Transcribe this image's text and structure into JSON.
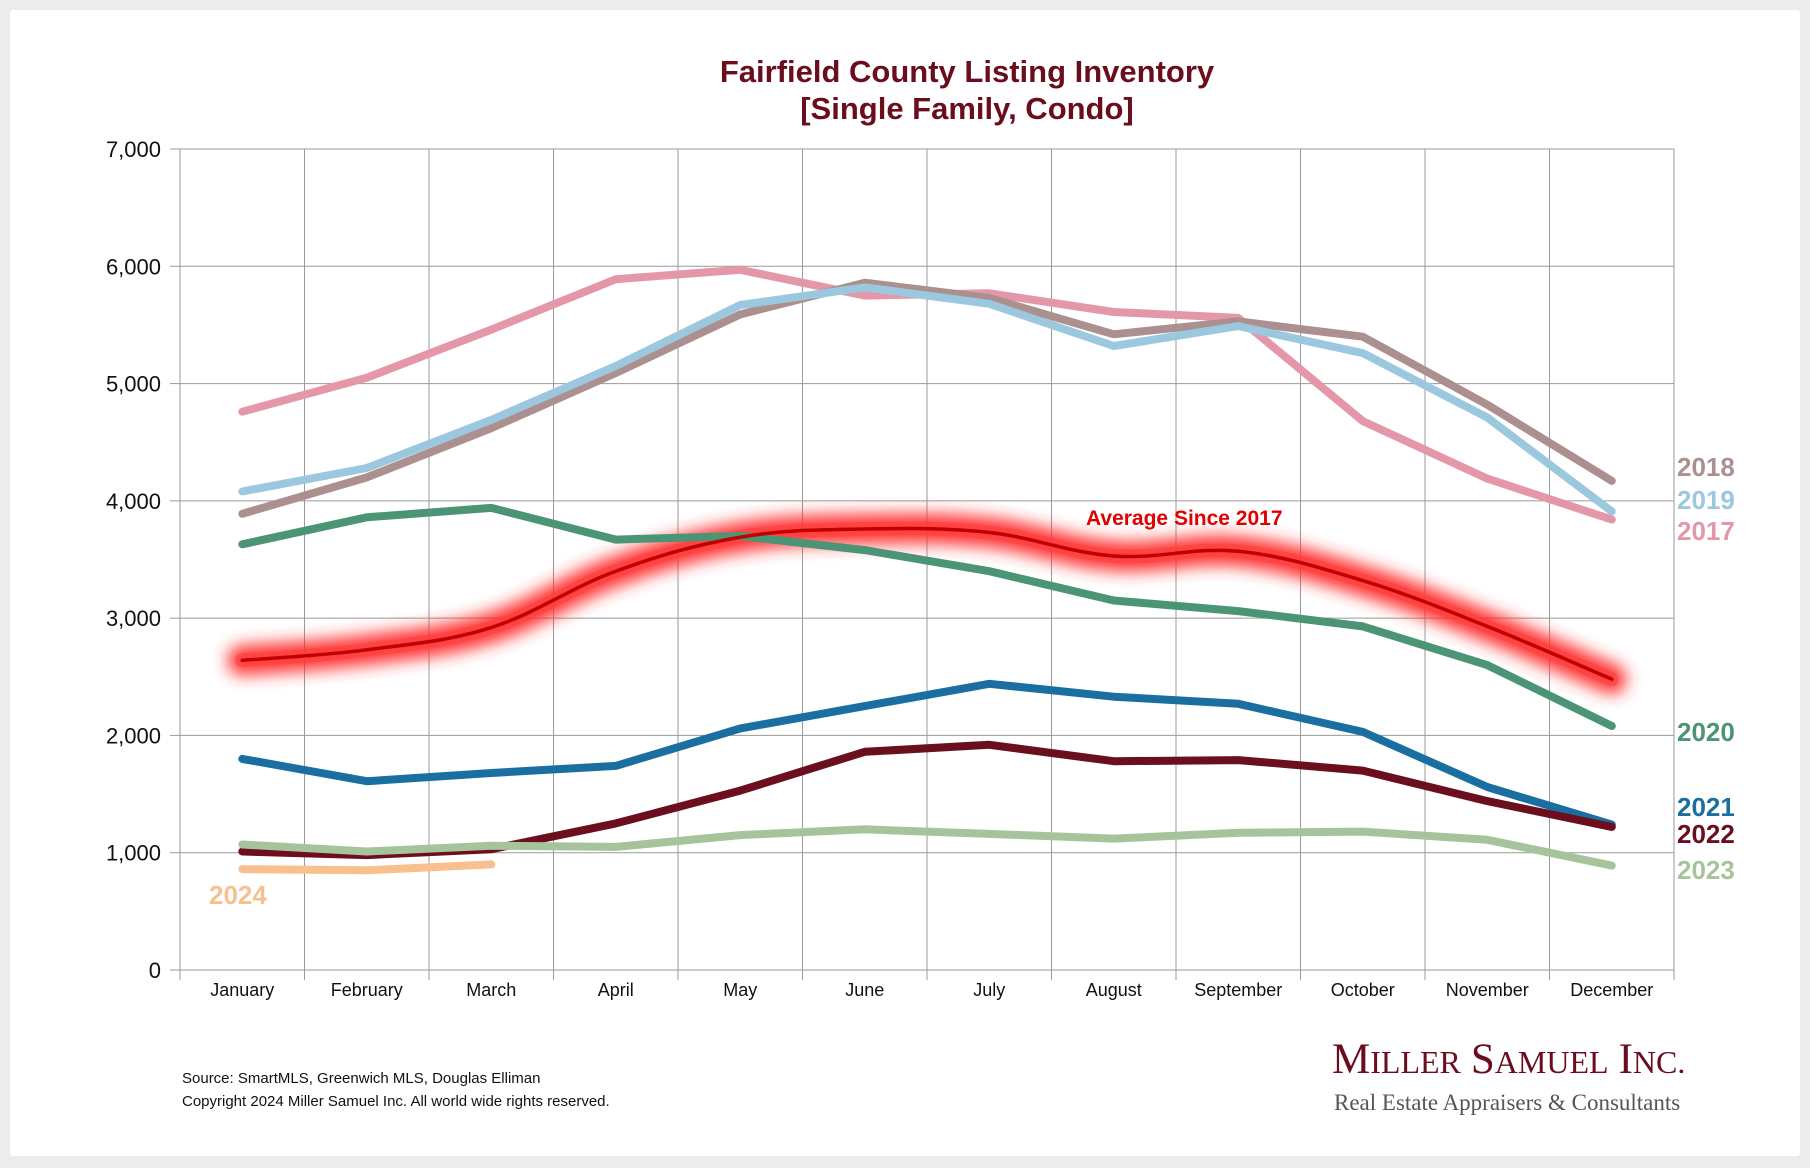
{
  "chart_data": {
    "type": "line",
    "title": "Fairfield County Listing Inventory",
    "subtitle": "[Single Family, Condo]",
    "xlabel": "",
    "ylabel": "",
    "categories": [
      "January",
      "February",
      "March",
      "April",
      "May",
      "June",
      "July",
      "August",
      "September",
      "October",
      "November",
      "December"
    ],
    "ylim": [
      0,
      7000
    ],
    "yticks": [
      0,
      1000,
      2000,
      3000,
      4000,
      5000,
      6000,
      7000
    ],
    "ytick_labels": [
      "0",
      "1,000",
      "2,000",
      "3,000",
      "4,000",
      "5,000",
      "6,000",
      "7,000"
    ],
    "grid": true,
    "series": [
      {
        "name": "2017",
        "color": "#e597aa",
        "values": [
          4760,
          5050,
          5460,
          5890,
          5970,
          5750,
          5770,
          5610,
          5560,
          4680,
          4190,
          3840
        ]
      },
      {
        "name": "2018",
        "color": "#ac8f8f",
        "values": [
          3890,
          4200,
          4620,
          5090,
          5590,
          5860,
          5730,
          5420,
          5530,
          5400,
          4820,
          4170
        ]
      },
      {
        "name": "2019",
        "color": "#9bc7df",
        "values": [
          4080,
          4280,
          4690,
          5150,
          5670,
          5820,
          5680,
          5320,
          5490,
          5260,
          4710,
          3910
        ]
      },
      {
        "name": "2020",
        "color": "#4b9475",
        "values": [
          3630,
          3860,
          3940,
          3670,
          3700,
          3580,
          3400,
          3150,
          3060,
          2930,
          2600,
          2080
        ]
      },
      {
        "name": "2021",
        "color": "#1a6fa0",
        "values": [
          1800,
          1610,
          1680,
          1740,
          2060,
          2250,
          2440,
          2330,
          2270,
          2030,
          1560,
          1240
        ]
      },
      {
        "name": "2022",
        "color": "#6b0f1e",
        "values": [
          1010,
          980,
          1030,
          1250,
          1530,
          1860,
          1920,
          1780,
          1790,
          1700,
          1440,
          1220
        ]
      },
      {
        "name": "2023",
        "color": "#a6c49b",
        "values": [
          1070,
          1010,
          1060,
          1050,
          1150,
          1200,
          1160,
          1120,
          1170,
          1180,
          1110,
          890
        ]
      },
      {
        "name": "2024",
        "color": "#f7c08e",
        "values": [
          860,
          850,
          900,
          null,
          null,
          null,
          null,
          null,
          null,
          null,
          null,
          null
        ]
      }
    ],
    "average": {
      "name": "Average  Since 2017",
      "color": "#e00000",
      "glow_color": "#ff2a2a",
      "values": [
        2640,
        2730,
        2920,
        3400,
        3690,
        3760,
        3730,
        3530,
        3570,
        3320,
        2930,
        2480
      ]
    },
    "legend_placement": "right, inline labels at line ends"
  },
  "footer": {
    "source": "Source: SmartMLS, Greenwich MLS, Douglas Elliman",
    "copyright": "Copyright 2024 Miller Samuel Inc.  All world wide rights reserved."
  },
  "brand": {
    "name_first_initial": "M",
    "name_first_rest": "ILLER",
    "name_second_initial": "S",
    "name_second_rest": "AMUEL",
    "name_third_initial": "I",
    "name_third_rest": "NC.",
    "tagline": "Real Estate Appraisers & Consultants"
  }
}
